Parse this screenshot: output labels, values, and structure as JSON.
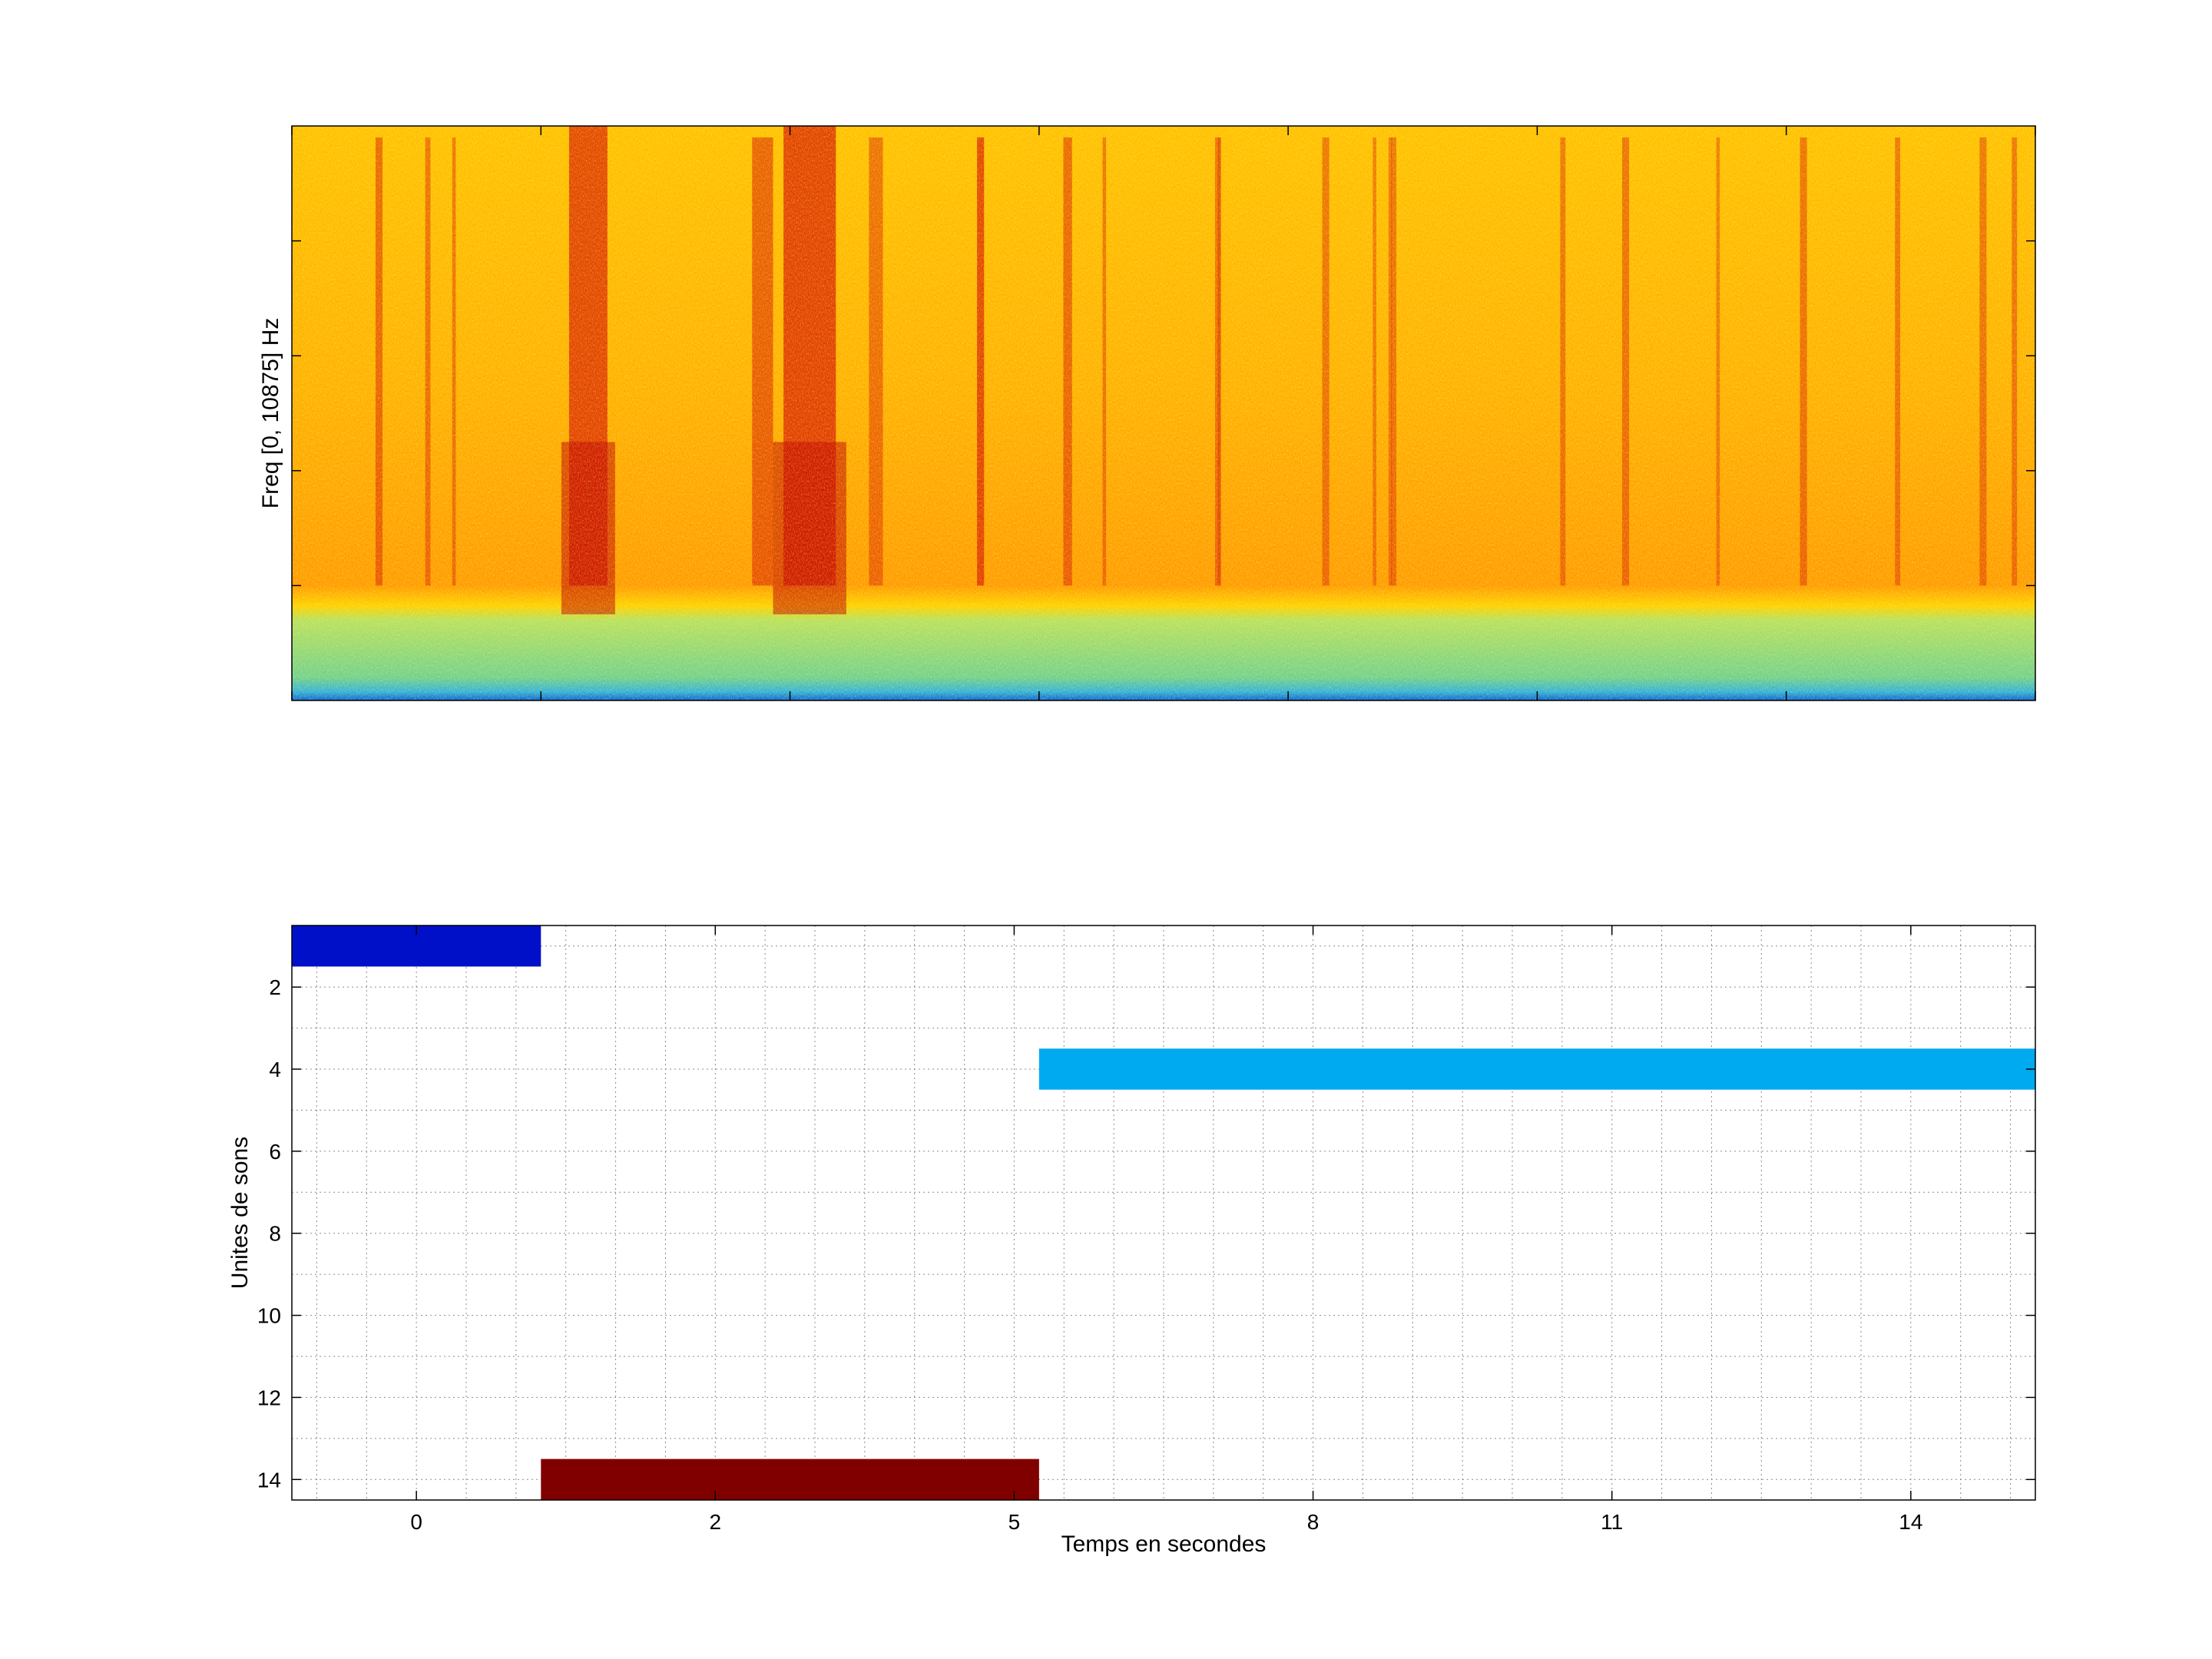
{
  "figure": {
    "background": "#ffffff"
  },
  "chart_data": [
    {
      "type": "heatmap",
      "name": "spectrogram",
      "ylabel": "Freq [0, 10875] Hz",
      "xlabel": "",
      "frequency_range_hz": [
        0,
        10875
      ],
      "time_range": [
        0,
        1
      ],
      "colormap": "jet",
      "colorscale_note_colors": {
        "background": "#ffb200",
        "hot_bands": "#d81a00",
        "low_band": "#7ad38a",
        "bottom_edge": "#1e90ff"
      },
      "notable_bands": [
        {
          "t": 0.05,
          "width": 0.004,
          "intensity": 0.55
        },
        {
          "t": 0.078,
          "width": 0.003,
          "intensity": 0.45
        },
        {
          "t": 0.093,
          "width": 0.002,
          "intensity": 0.4
        },
        {
          "t": 0.17,
          "width": 0.022,
          "intensity": 0.95
        },
        {
          "t": 0.27,
          "width": 0.012,
          "intensity": 0.65
        },
        {
          "t": 0.297,
          "width": 0.03,
          "intensity": 1.0
        },
        {
          "t": 0.335,
          "width": 0.008,
          "intensity": 0.45
        },
        {
          "t": 0.395,
          "width": 0.004,
          "intensity": 0.45
        },
        {
          "t": 0.395,
          "width": 0.004,
          "intensity": 0.45
        },
        {
          "t": 0.445,
          "width": 0.005,
          "intensity": 0.55
        },
        {
          "t": 0.466,
          "width": 0.002,
          "intensity": 0.4
        },
        {
          "t": 0.531,
          "width": 0.003,
          "intensity": 0.4
        },
        {
          "t": 0.532,
          "width": 0.002,
          "intensity": 0.35
        },
        {
          "t": 0.593,
          "width": 0.004,
          "intensity": 0.4
        },
        {
          "t": 0.621,
          "width": 0.002,
          "intensity": 0.35
        },
        {
          "t": 0.63,
          "width": 0.002,
          "intensity": 0.35
        },
        {
          "t": 0.632,
          "width": 0.003,
          "intensity": 0.4
        },
        {
          "t": 0.729,
          "width": 0.003,
          "intensity": 0.4
        },
        {
          "t": 0.765,
          "width": 0.004,
          "intensity": 0.45
        },
        {
          "t": 0.818,
          "width": 0.002,
          "intensity": 0.3
        },
        {
          "t": 0.867,
          "width": 0.004,
          "intensity": 0.45
        },
        {
          "t": 0.921,
          "width": 0.003,
          "intensity": 0.4
        },
        {
          "t": 0.97,
          "width": 0.004,
          "intensity": 0.4
        },
        {
          "t": 0.988,
          "width": 0.003,
          "intensity": 0.4
        }
      ]
    },
    {
      "type": "bar",
      "orientation": "horizontal",
      "name": "units",
      "ylabel": "Unites de sons",
      "xlabel": "Temps en secondes",
      "xlim": [
        -1.25,
        16.25
      ],
      "ylim": [
        0.5,
        14.5
      ],
      "y_reversed": true,
      "grid": true,
      "grid_minor": true,
      "xtick_positions": [
        0,
        3,
        6,
        9,
        12,
        15
      ],
      "xtick_labels": [
        "0",
        "2",
        "5",
        "8",
        "11",
        "14"
      ],
      "ytick_positions": [
        2,
        4,
        6,
        8,
        10,
        12,
        14
      ],
      "ytick_labels": [
        "2",
        "4",
        "6",
        "8",
        "10",
        "12",
        "14"
      ],
      "bars": [
        {
          "unit": 1,
          "start": -1.25,
          "end": 1.25,
          "color": "#0010c8"
        },
        {
          "unit": 14,
          "start": 1.25,
          "end": 6.25,
          "color": "#800000"
        },
        {
          "unit": 4,
          "start": 6.25,
          "end": 16.25,
          "color": "#00aaf0"
        }
      ]
    }
  ]
}
